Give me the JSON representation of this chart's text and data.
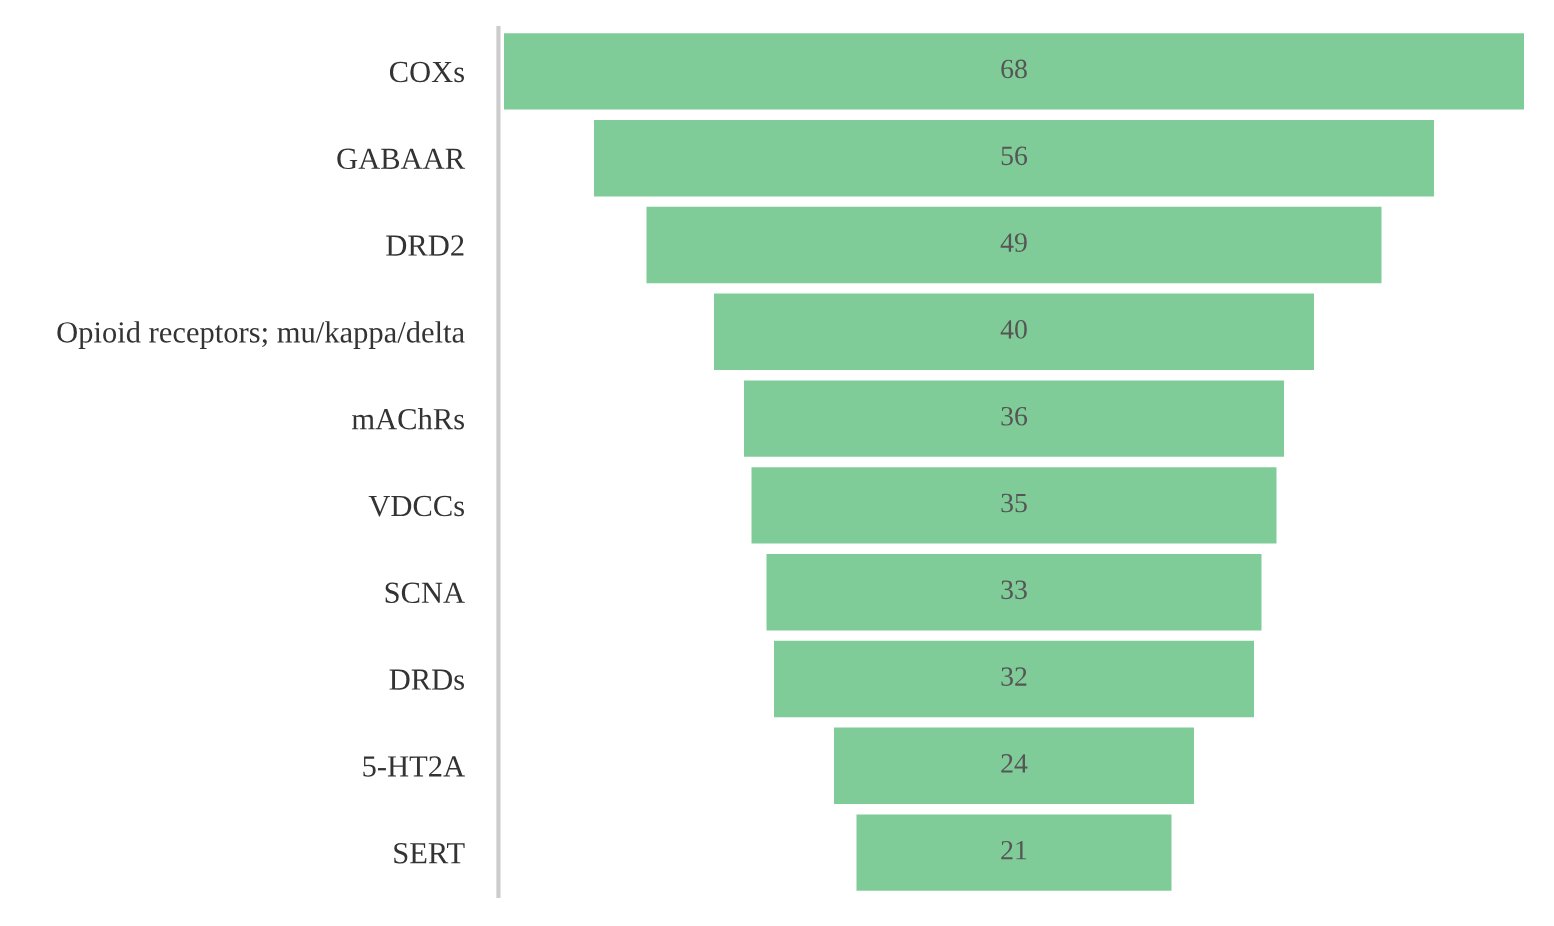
{
  "chart_data": {
    "type": "other",
    "categories": [
      "COXs",
      "GABAAR",
      "DRD2",
      "Opioid receptors; mu/kappa/delta",
      "mAChRs",
      "VDCCs",
      "SCNA",
      "DRDs",
      "5-HT2A",
      "SERT"
    ],
    "values": [
      68,
      56,
      49,
      40,
      36,
      35,
      33,
      32,
      24,
      21
    ],
    "color": "#80cc99",
    "data_labels": true
  }
}
